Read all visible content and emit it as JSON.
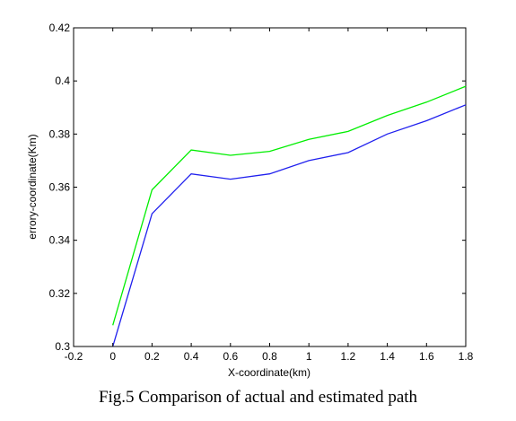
{
  "caption": "Fig.5 Comparison of actual and estimated path",
  "chart_data": {
    "type": "line",
    "xlabel": "X-coordinate(km)",
    "ylabel": "errory-coordinate(Km)",
    "xlim": [
      -0.2,
      1.8
    ],
    "ylim": [
      0.3,
      0.42
    ],
    "xticks": [
      -0.2,
      0,
      0.2,
      0.4,
      0.6,
      0.8,
      1,
      1.2,
      1.4,
      1.6,
      1.8
    ],
    "xtick_labels": [
      "-0.2",
      "0",
      "0.2",
      "0.4",
      "0.6",
      "0.8",
      "1",
      "1.2",
      "1.4",
      "1.6",
      "1.8"
    ],
    "yticks": [
      0.3,
      0.32,
      0.34,
      0.36,
      0.38,
      0.4,
      0.42
    ],
    "ytick_labels": [
      "0.3",
      "0.32",
      "0.34",
      "0.36",
      "0.38",
      "0.4",
      "0.42"
    ],
    "grid": false,
    "x": [
      0,
      0.2,
      0.4,
      0.6,
      0.8,
      1.0,
      1.2,
      1.4,
      1.6,
      1.8
    ],
    "series": [
      {
        "color": "#00ee00",
        "values": [
          0.308,
          0.359,
          0.374,
          0.372,
          0.3735,
          0.378,
          0.381,
          0.387,
          0.392,
          0.398
        ]
      },
      {
        "color": "#2020ee",
        "values": [
          0.3,
          0.35,
          0.365,
          0.363,
          0.365,
          0.37,
          0.373,
          0.38,
          0.385,
          0.391
        ]
      }
    ]
  }
}
